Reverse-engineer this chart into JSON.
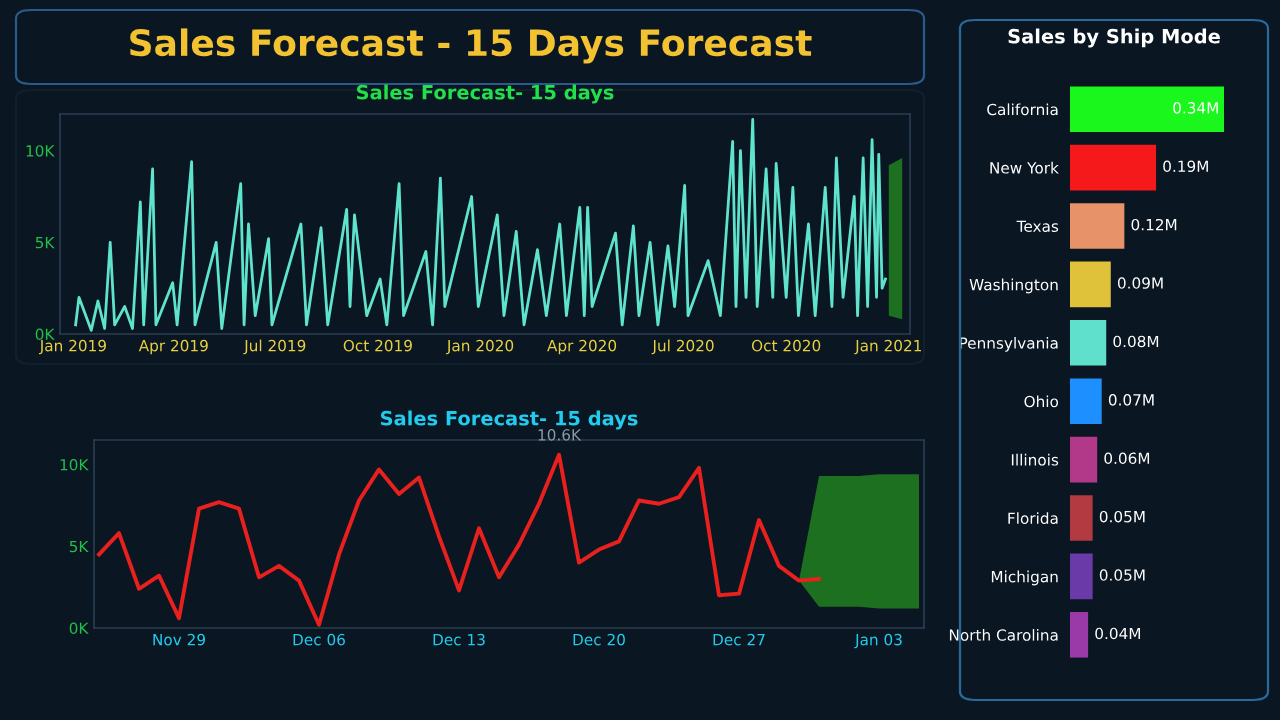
{
  "chart_data": [
    {
      "type": "other",
      "title": "Sales Forecast - 15 Days Forecast"
    },
    {
      "type": "line",
      "title": "Sales Forecast- 15 days",
      "series": [
        {
          "type": "line",
          "color": "#5fe3cc",
          "x": [
            "2019-01-03",
            "2019-01-06",
            "2019-01-17",
            "2019-01-23",
            "2019-01-29",
            "2019-02-03",
            "2019-02-07",
            "2019-02-16",
            "2019-02-23",
            "2019-03-02",
            "2019-03-05",
            "2019-03-13",
            "2019-03-16",
            "2019-03-31",
            "2019-04-04",
            "2019-04-17",
            "2019-04-20",
            "2019-05-09",
            "2019-05-14",
            "2019-05-31",
            "2019-06-03",
            "2019-06-07",
            "2019-06-13",
            "2019-06-25",
            "2019-06-28",
            "2019-07-24",
            "2019-07-29",
            "2019-08-11",
            "2019-08-17",
            "2019-09-03",
            "2019-09-06",
            "2019-09-10",
            "2019-09-21",
            "2019-10-03",
            "2019-10-09",
            "2019-10-20",
            "2019-10-24",
            "2019-11-13",
            "2019-11-19",
            "2019-11-26",
            "2019-11-30",
            "2019-12-24",
            "2019-12-30",
            "2020-01-16",
            "2020-01-22",
            "2020-02-02",
            "2020-02-09",
            "2020-02-21",
            "2020-02-29",
            "2020-03-12",
            "2020-03-18",
            "2020-03-30",
            "2020-04-03",
            "2020-04-06",
            "2020-04-10",
            "2020-05-01",
            "2020-05-07",
            "2020-05-17",
            "2020-05-22",
            "2020-06-01",
            "2020-06-08",
            "2020-06-17",
            "2020-06-23",
            "2020-07-02",
            "2020-07-05",
            "2020-07-23",
            "2020-08-03",
            "2020-08-14",
            "2020-08-17",
            "2020-08-21",
            "2020-08-26",
            "2020-09-01",
            "2020-09-05",
            "2020-09-13",
            "2020-09-19",
            "2020-09-22",
            "2020-10-01",
            "2020-10-07",
            "2020-10-12",
            "2020-10-21",
            "2020-10-27",
            "2020-11-05",
            "2020-11-11",
            "2020-11-15",
            "2020-11-21",
            "2020-12-01",
            "2020-12-04",
            "2020-12-09",
            "2020-12-13",
            "2020-12-17",
            "2020-12-21",
            "2020-12-23",
            "2020-12-26",
            "2020-12-29"
          ],
          "values": [
            500,
            2000,
            200,
            1800,
            300,
            5000,
            500,
            1500,
            300,
            7200,
            500,
            9000,
            500,
            2800,
            500,
            9400,
            500,
            5000,
            300,
            8200,
            500,
            6000,
            1000,
            5200,
            500,
            6000,
            500,
            5800,
            500,
            6800,
            1500,
            6500,
            1000,
            3000,
            500,
            8200,
            1000,
            4500,
            500,
            8500,
            1500,
            7500,
            1500,
            6500,
            1000,
            5600,
            500,
            4600,
            1000,
            6000,
            1000,
            6900,
            1000,
            6900,
            1500,
            5500,
            500,
            5900,
            1000,
            5000,
            500,
            4800,
            1500,
            8100,
            1000,
            4000,
            1000,
            10500,
            1500,
            10000,
            2000,
            11700,
            1500,
            9000,
            2000,
            9300,
            2000,
            8000,
            1000,
            6000,
            1000,
            8000,
            1500,
            9600,
            2000,
            7500,
            1000,
            9600,
            1500,
            10600,
            2000,
            9800,
            2500,
            3000
          ]
        },
        {
          "type": "line",
          "color": "#1f7a1f",
          "x": [
            "2021-01-01",
            "2021-01-13"
          ],
          "values": [
            null,
            null
          ],
          "lower": [
            1000,
            800
          ],
          "upper": [
            9200,
            9600
          ]
        }
      ],
      "xlim": [
        "2018-12-20",
        "2021-01-20"
      ],
      "xticks": [
        {
          "value": "2019-01-01",
          "label": "Jan 2019"
        },
        {
          "value": "2019-04-01",
          "label": "Apr 2019"
        },
        {
          "value": "2019-07-01",
          "label": "Jul 2019"
        },
        {
          "value": "2019-10-01",
          "label": "Oct 2019"
        },
        {
          "value": "2020-01-01",
          "label": "Jan 2020"
        },
        {
          "value": "2020-04-01",
          "label": "Apr 2020"
        },
        {
          "value": "2020-07-01",
          "label": "Jul 2020"
        },
        {
          "value": "2020-10-01",
          "label": "Oct 2020"
        },
        {
          "value": "2021-01-01",
          "label": "Jan 2021"
        }
      ],
      "ylim": [
        0,
        12000
      ],
      "yticks": [
        {
          "value": 0,
          "label": "0K"
        },
        {
          "value": 5000,
          "label": "5K"
        },
        {
          "value": 10000,
          "label": "10K"
        }
      ]
    },
    {
      "type": "line",
      "title": "Sales Forecast- 15 days",
      "series": [
        {
          "type": "line",
          "color": "#e8201e",
          "x": [
            "2020-11-25",
            "2020-11-26",
            "2020-11-27",
            "2020-11-28",
            "2020-11-29",
            "2020-11-30",
            "2020-12-01",
            "2020-12-02",
            "2020-12-03",
            "2020-12-04",
            "2020-12-05",
            "2020-12-06",
            "2020-12-07",
            "2020-12-08",
            "2020-12-09",
            "2020-12-10",
            "2020-12-11",
            "2020-12-12",
            "2020-12-13",
            "2020-12-14",
            "2020-12-15",
            "2020-12-16",
            "2020-12-17",
            "2020-12-18",
            "2020-12-19",
            "2020-12-20",
            "2020-12-21",
            "2020-12-22",
            "2020-12-23",
            "2020-12-24",
            "2020-12-25",
            "2020-12-26",
            "2020-12-27",
            "2020-12-28",
            "2020-12-29",
            "2020-12-30",
            "2020-12-31"
          ],
          "values": [
            4500,
            5800,
            2400,
            3200,
            600,
            7300,
            7700,
            7300,
            3100,
            3800,
            2900,
            200,
            4500,
            7800,
            9700,
            8200,
            9200,
            5600,
            2300,
            6100,
            3100,
            5100,
            7600,
            10600,
            4000,
            4800,
            5300,
            7800,
            7600,
            8000,
            9800,
            2000,
            2100,
            6600,
            3800,
            2900,
            3000
          ]
        },
        {
          "type": "line",
          "color": "#1f7a1f",
          "x": [
            "2020-12-30",
            "2020-12-31",
            "2021-01-01",
            "2021-01-02",
            "2021-01-03",
            "2021-01-04",
            "2021-01-05"
          ],
          "values": [
            null,
            null,
            null,
            null,
            null,
            null,
            null
          ],
          "lower": [
            2900,
            1300,
            1300,
            1300,
            1200,
            1200,
            1200
          ],
          "upper": [
            2900,
            9300,
            9300,
            9300,
            9400,
            9400,
            9400
          ]
        }
      ],
      "annotations": [
        {
          "text": "10.6K",
          "x": "2020-12-18",
          "y": 10600
        }
      ],
      "xlim": [
        "2020-11-24T18:00",
        "2021-01-05T06:00"
      ],
      "xticks": [
        {
          "value": "2020-11-29",
          "label": "Nov 29"
        },
        {
          "value": "2020-12-06",
          "label": "Dec 06"
        },
        {
          "value": "2020-12-13",
          "label": "Dec 13"
        },
        {
          "value": "2020-12-20",
          "label": "Dec 20"
        },
        {
          "value": "2020-12-27",
          "label": "Dec 27"
        },
        {
          "value": "2021-01-03",
          "label": "Jan 03"
        }
      ],
      "ylim": [
        0,
        11500
      ],
      "yticks": [
        {
          "value": 0,
          "label": "0K"
        },
        {
          "value": 5000,
          "label": "5K"
        },
        {
          "value": 10000,
          "label": "10K"
        }
      ]
    },
    {
      "type": "bar",
      "orientation": "horizontal",
      "title": "Sales by Ship Mode",
      "categories": [
        "California",
        "New York",
        "Texas",
        "Washington",
        "Pennsylvania",
        "Ohio",
        "Illinois",
        "Florida",
        "Michigan",
        "North Carolina"
      ],
      "values": [
        0.34,
        0.19,
        0.12,
        0.09,
        0.08,
        0.07,
        0.06,
        0.05,
        0.05,
        0.04
      ],
      "value_labels": [
        "0.34M",
        "0.19M",
        "0.12M",
        "0.09M",
        "0.08M",
        "0.07M",
        "0.06M",
        "0.05M",
        "0.05M",
        "0.04M"
      ],
      "colors": [
        "#19f71c",
        "#f5191c",
        "#e8926a",
        "#e0c23a",
        "#5ee0cc",
        "#1e8fff",
        "#b2398a",
        "#b23a40",
        "#6a3aa8",
        "#9a3aa8"
      ]
    }
  ]
}
